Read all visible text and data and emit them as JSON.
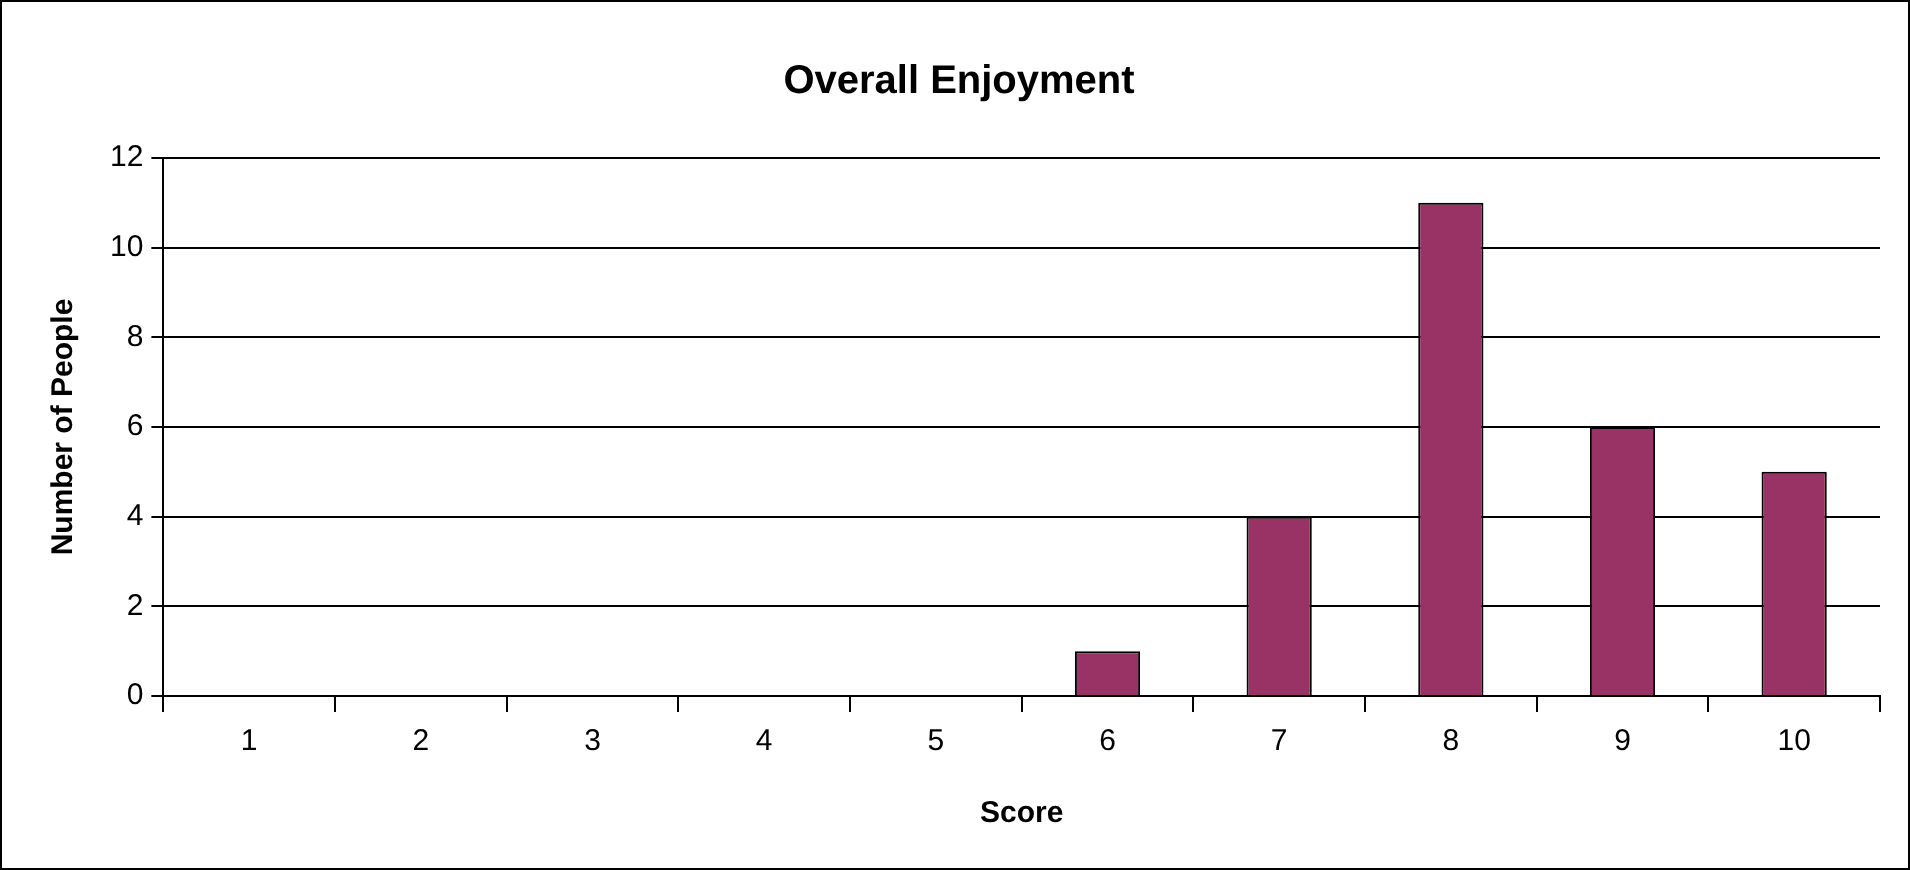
{
  "chart_data": {
    "type": "bar",
    "title": "Overall Enjoyment",
    "xlabel": "Score",
    "ylabel": "Number of People",
    "categories": [
      "1",
      "2",
      "3",
      "4",
      "5",
      "6",
      "7",
      "8",
      "9",
      "10"
    ],
    "values": [
      0,
      0,
      0,
      0,
      0,
      1,
      4,
      11,
      6,
      5
    ],
    "color": "#993366",
    "ylim": [
      0,
      12
    ],
    "yticks": [
      0,
      2,
      4,
      6,
      8,
      10,
      12
    ],
    "grid": "y"
  }
}
